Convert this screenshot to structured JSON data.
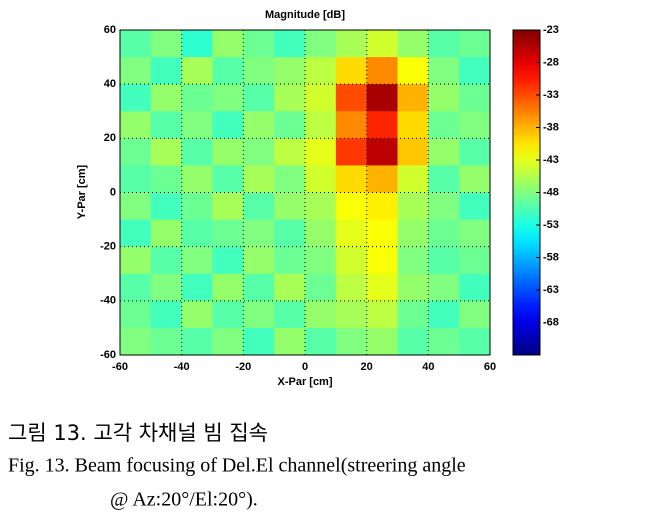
{
  "chart_data": {
    "type": "heatmap",
    "title": "Magnitude [dB]",
    "x_label": "X-Par [cm]",
    "y_label": "Y-Par [cm]",
    "x": [
      -55,
      -45,
      -35,
      -25,
      -15,
      -5,
      5,
      15,
      25,
      35,
      45,
      55
    ],
    "y": [
      55,
      45,
      35,
      25,
      15,
      5,
      -5,
      -15,
      -25,
      -35,
      -45,
      -55
    ],
    "z": [
      [
        -50,
        -48,
        -52,
        -47,
        -49,
        -51,
        -48,
        -46,
        -44,
        -47,
        -50,
        -49
      ],
      [
        -48,
        -51,
        -46,
        -50,
        -48,
        -47,
        -45,
        -40,
        -36,
        -42,
        -48,
        -51
      ],
      [
        -51,
        -47,
        -49,
        -48,
        -50,
        -46,
        -44,
        -33,
        -25,
        -38,
        -47,
        -49
      ],
      [
        -47,
        -50,
        -48,
        -51,
        -47,
        -49,
        -45,
        -36,
        -31,
        -40,
        -49,
        -48
      ],
      [
        -49,
        -46,
        -50,
        -47,
        -48,
        -45,
        -43,
        -32,
        -26,
        -39,
        -47,
        -50
      ],
      [
        -50,
        -49,
        -47,
        -50,
        -46,
        -48,
        -44,
        -40,
        -38,
        -44,
        -50,
        -47
      ],
      [
        -48,
        -51,
        -49,
        -46,
        -50,
        -47,
        -46,
        -42,
        -41,
        -46,
        -48,
        -51
      ],
      [
        -51,
        -47,
        -50,
        -49,
        -48,
        -50,
        -47,
        -43,
        -42,
        -47,
        -49,
        -48
      ],
      [
        -47,
        -50,
        -48,
        -51,
        -47,
        -49,
        -48,
        -44,
        -42,
        -48,
        -50,
        -49
      ],
      [
        -50,
        -48,
        -51,
        -47,
        -50,
        -46,
        -49,
        -45,
        -43,
        -47,
        -48,
        -51
      ],
      [
        -49,
        -51,
        -47,
        -50,
        -48,
        -50,
        -47,
        -46,
        -45,
        -49,
        -51,
        -48
      ],
      [
        -48,
        -49,
        -50,
        -48,
        -51,
        -47,
        -50,
        -48,
        -47,
        -50,
        -49,
        -50
      ]
    ],
    "xlim": [
      -60,
      60
    ],
    "xticks": [
      -60,
      -40,
      -20,
      0,
      20,
      40,
      60
    ],
    "ylim": [
      -60,
      60
    ],
    "yticks": [
      60,
      40,
      20,
      0,
      -20,
      -40,
      -60
    ],
    "colormap": "jet",
    "clim": [
      -73,
      -23
    ],
    "cticks": [
      -23,
      -28,
      -33,
      -38,
      -43,
      -48,
      -53,
      -58,
      -63,
      -68
    ],
    "grid": true
  },
  "caption": {
    "korean": "그림 13. 고각 차채널 빔 집속",
    "english": [
      "Fig. 13. Beam focusing of Del.El channel(streering angle",
      "@ Az:20°/El:20°)."
    ]
  }
}
